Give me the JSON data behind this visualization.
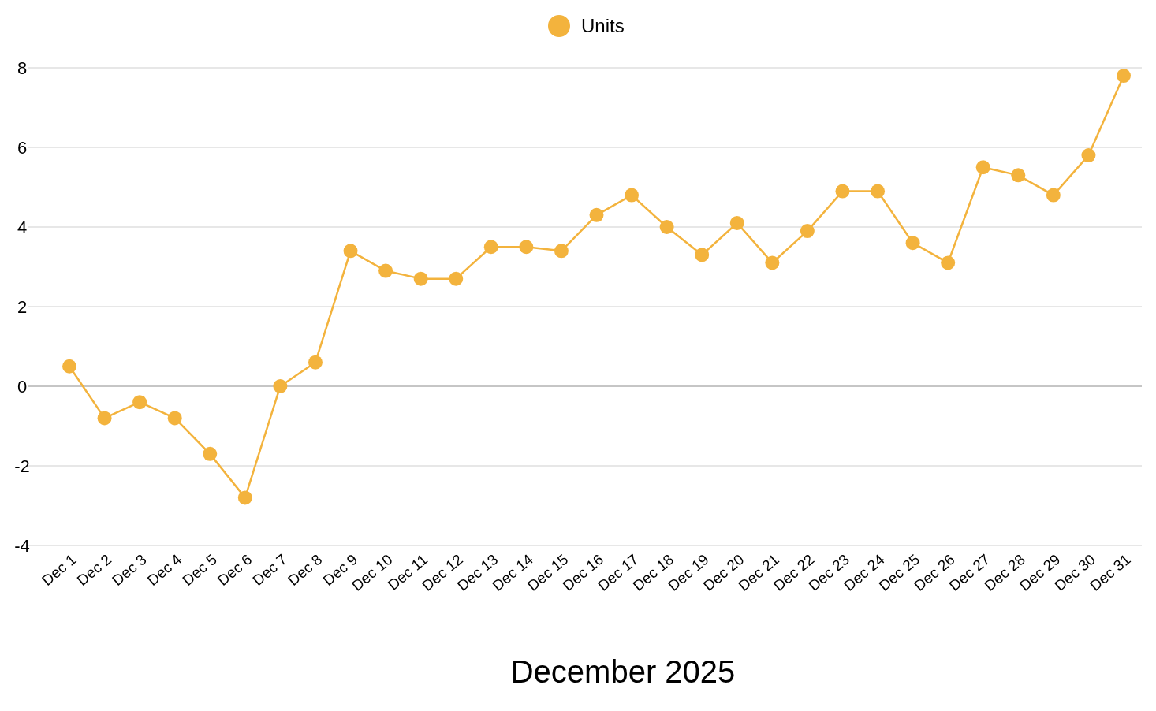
{
  "chart_data": {
    "type": "line",
    "xlabel": "December 2025",
    "categories": [
      "Dec 1",
      "Dec 2",
      "Dec 3",
      "Dec 4",
      "Dec 5",
      "Dec 6",
      "Dec 7",
      "Dec 8",
      "Dec 9",
      "Dec 10",
      "Dec 11",
      "Dec 12",
      "Dec 13",
      "Dec 14",
      "Dec 15",
      "Dec 16",
      "Dec 17",
      "Dec 18",
      "Dec 19",
      "Dec 20",
      "Dec 21",
      "Dec 22",
      "Dec 23",
      "Dec 24",
      "Dec 25",
      "Dec 26",
      "Dec 27",
      "Dec 28",
      "Dec 29",
      "Dec 30",
      "Dec 31"
    ],
    "series": [
      {
        "name": "Units",
        "color": "#f3b33d",
        "values": [
          0.5,
          -0.8,
          -0.4,
          -0.8,
          -1.7,
          -2.8,
          0,
          0.6,
          3.4,
          2.9,
          2.7,
          2.7,
          3.5,
          3.5,
          3.4,
          4.3,
          4.8,
          4.0,
          3.3,
          4.1,
          3.1,
          3.9,
          4.9,
          4.9,
          3.6,
          3.1,
          5.5,
          5.3,
          4.8,
          5.8,
          7.8
        ]
      }
    ],
    "ylim": [
      -4,
      8
    ],
    "yticks": [
      -4,
      -2,
      0,
      2,
      4,
      6,
      8
    ],
    "grid": "y",
    "legend": "top",
    "marker": "circle",
    "line_style": "solid"
  }
}
